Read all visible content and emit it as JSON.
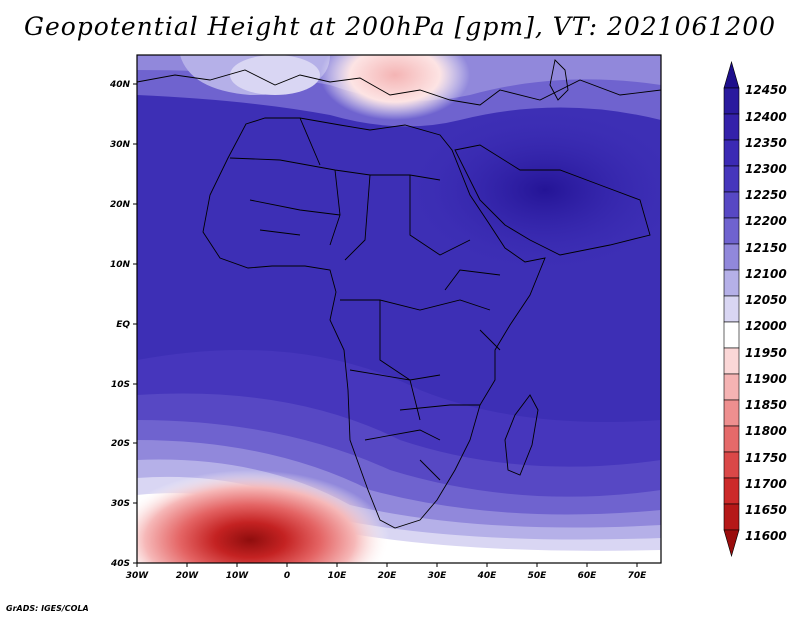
{
  "title": "Geopotential Height at 200hPa [gpm], VT: 2021061200",
  "footer": "GrADS: IGES/COLA",
  "lat_labels": [
    "40N",
    "30N",
    "20N",
    "10N",
    "EQ",
    "10S",
    "20S",
    "30S",
    "40S"
  ],
  "lon_labels": [
    "30W",
    "20W",
    "10W",
    "0",
    "10E",
    "20E",
    "30E",
    "40E",
    "50E",
    "60E",
    "70E"
  ],
  "colorbar": {
    "levels": [
      "12450",
      "12400",
      "12350",
      "12300",
      "12250",
      "12200",
      "12150",
      "12100",
      "12050",
      "12000",
      "11950",
      "11900",
      "11850",
      "11800",
      "11750",
      "11700",
      "11650",
      "11600"
    ],
    "colors": [
      "#1e0f8c",
      "#2a1a9e",
      "#3421aa",
      "#3b2ab4",
      "#4636bc",
      "#5748c4",
      "#6f63cf",
      "#9188db",
      "#b5b0e8",
      "#d9d6f3",
      "#ffffff",
      "#fbd7d7",
      "#f5b3b3",
      "#ee8f8f",
      "#e56a6a",
      "#da4848",
      "#cc2a2a",
      "#b51818",
      "#9a0d0d"
    ]
  }
}
